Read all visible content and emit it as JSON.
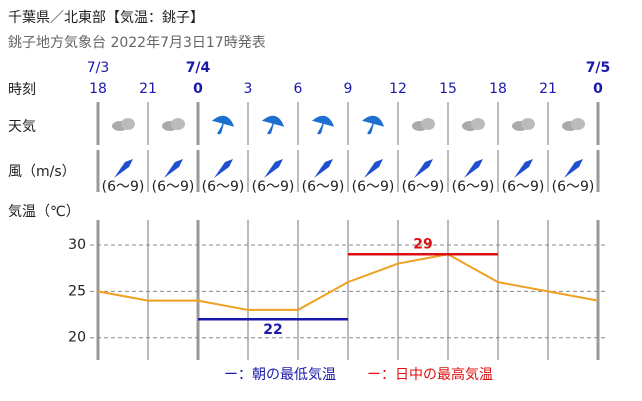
{
  "header": {
    "title": "千葉県／北東部【気温：銚子】",
    "subtitle": "銚子地方気象台 2022年7月3日17時発表"
  },
  "row_labels": {
    "time": "時刻",
    "weather": "天気",
    "wind": "風（m/s）",
    "temp": "気温（℃）"
  },
  "dates": [
    "7/3",
    null,
    "7/4",
    null,
    null,
    null,
    null,
    null,
    null,
    null,
    "7/5"
  ],
  "wind": [
    "(6～9)",
    "(6～9)",
    "(6～9)",
    "(6～9)",
    "(6～9)",
    "(6～9)",
    "(6～9)",
    "(6～9)",
    "(6～9)",
    "(6～9)"
  ],
  "chart_data": {
    "type": "line",
    "categories": [
      "18",
      "21",
      "0",
      "3",
      "6",
      "9",
      "12",
      "15",
      "18",
      "21",
      "0"
    ],
    "values": [
      25,
      24,
      24,
      23,
      23,
      26,
      28,
      29,
      26,
      25,
      24
    ],
    "color": "#f0a020",
    "ylim": [
      17.6,
      32.7
    ],
    "yticks": [
      20,
      25,
      30
    ],
    "grid": true,
    "min_temp": {
      "value": 22,
      "from": 2,
      "to": 5,
      "color": "#1a1aaa"
    },
    "max_temp": {
      "value": 29,
      "from": 5,
      "to": 8,
      "color": "#dd1111"
    },
    "legend": [
      {
        "text": "ー：朝の最低気温",
        "color": "#1a1aaa"
      },
      {
        "text": "ー：日中の最高気温",
        "color": "#dd1111"
      }
    ]
  }
}
